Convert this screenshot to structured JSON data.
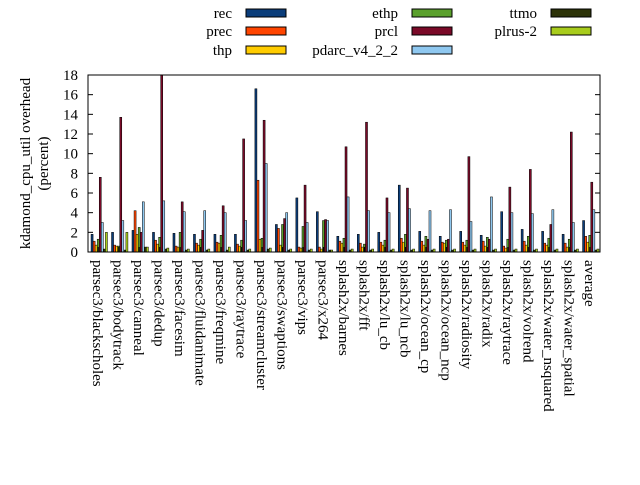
{
  "chart_data": {
    "type": "bar",
    "ylabel": "kdamond_cpu_util overhead (percent)",
    "ylabel_lines": [
      "kdamond_cpu_util overhead",
      "(percent)"
    ],
    "ylim": [
      0,
      18
    ],
    "yticks": [
      0,
      2,
      4,
      6,
      8,
      10,
      12,
      14,
      16,
      18
    ],
    "grid": false,
    "legend_position": "top",
    "categories": [
      "parsec3/blackscholes",
      "parsec3/bodytrack",
      "parsec3/canneal",
      "parsec3/dedup",
      "parsec3/facesim",
      "parsec3/fluidanimate",
      "parsec3/freqmine",
      "parsec3/raytrace",
      "parsec3/streamcluster",
      "parsec3/swaptions",
      "parsec3/vips",
      "parsec3/x264",
      "splash2x/barnes",
      "splash2x/fft",
      "splash2x/lu_cb",
      "splash2x/lu_ncb",
      "splash2x/ocean_cp",
      "splash2x/ocean_ncp",
      "splash2x/radiosity",
      "splash2x/radix",
      "splash2x/raytrace",
      "splash2x/volrend",
      "splash2x/water_nsquared",
      "splash2x/water_spatial",
      "average"
    ],
    "series": [
      {
        "name": "rec",
        "color": "#0b3d7a",
        "values": [
          1.8,
          2.0,
          2.2,
          2.0,
          1.9,
          1.8,
          1.8,
          1.8,
          16.6,
          2.8,
          5.5,
          4.1,
          1.6,
          1.8,
          2.0,
          6.8,
          2.1,
          1.6,
          2.1,
          1.7,
          4.1,
          2.3,
          2.1,
          1.8,
          3.2
        ]
      },
      {
        "name": "prec",
        "color": "#ff4500",
        "values": [
          1.1,
          0.7,
          4.2,
          1.2,
          0.6,
          0.9,
          1.0,
          0.8,
          7.3,
          2.4,
          0.5,
          0.5,
          1.1,
          0.9,
          1.0,
          1.4,
          1.1,
          1.0,
          1.0,
          1.1,
          0.6,
          1.1,
          0.9,
          0.9,
          1.6
        ]
      },
      {
        "name": "thp",
        "color": "#ffcc00",
        "values": [
          0.7,
          0.6,
          1.8,
          0.8,
          0.5,
          0.7,
          0.9,
          0.6,
          1.3,
          0.7,
          0.4,
          0.3,
          0.9,
          0.5,
          0.7,
          1.0,
          0.7,
          0.9,
          0.7,
          0.6,
          0.4,
          0.7,
          0.7,
          0.5,
          1.0
        ]
      },
      {
        "name": "ethp",
        "color": "#5aa02c",
        "values": [
          1.3,
          0.6,
          2.5,
          1.5,
          2.0,
          1.3,
          1.7,
          1.2,
          1.4,
          2.8,
          2.6,
          3.2,
          1.4,
          0.8,
          1.2,
          1.8,
          1.6,
          1.2,
          1.2,
          1.5,
          1.3,
          1.6,
          1.4,
          1.3,
          1.7
        ]
      },
      {
        "name": "prcl",
        "color": "#7a0a28",
        "values": [
          7.6,
          13.7,
          2.0,
          18.0,
          5.1,
          2.2,
          4.7,
          11.5,
          13.4,
          3.4,
          6.8,
          3.3,
          10.7,
          13.2,
          5.5,
          6.5,
          1.3,
          1.3,
          9.7,
          1.3,
          6.6,
          8.4,
          2.8,
          12.2,
          7.1
        ]
      },
      {
        "name": "pdarc_v4_2_2",
        "color": "#8fc8f0",
        "values": [
          3.0,
          3.2,
          5.1,
          5.2,
          4.1,
          4.2,
          4.0,
          3.2,
          9.0,
          4.0,
          3.0,
          3.2,
          5.6,
          4.2,
          4.0,
          4.4,
          4.2,
          4.3,
          3.1,
          5.6,
          4.0,
          3.9,
          4.3,
          3.0,
          4.3
        ]
      },
      {
        "name": "ttmo",
        "color": "#2d3308",
        "values": [
          0.3,
          0.2,
          0.5,
          0.3,
          0.2,
          0.2,
          0.2,
          0.2,
          0.3,
          0.2,
          0.2,
          0.2,
          0.2,
          0.2,
          0.2,
          0.2,
          0.2,
          0.2,
          0.2,
          0.2,
          0.2,
          0.2,
          0.2,
          0.2,
          0.2
        ]
      },
      {
        "name": "plrus-2",
        "color": "#a8cc1c",
        "values": [
          2.0,
          2.0,
          0.5,
          0.4,
          0.3,
          0.3,
          0.5,
          0.3,
          0.4,
          0.3,
          0.3,
          0.2,
          0.3,
          0.3,
          0.3,
          0.3,
          0.3,
          0.3,
          0.3,
          0.3,
          0.3,
          0.3,
          0.3,
          0.3,
          0.3
        ]
      }
    ]
  }
}
